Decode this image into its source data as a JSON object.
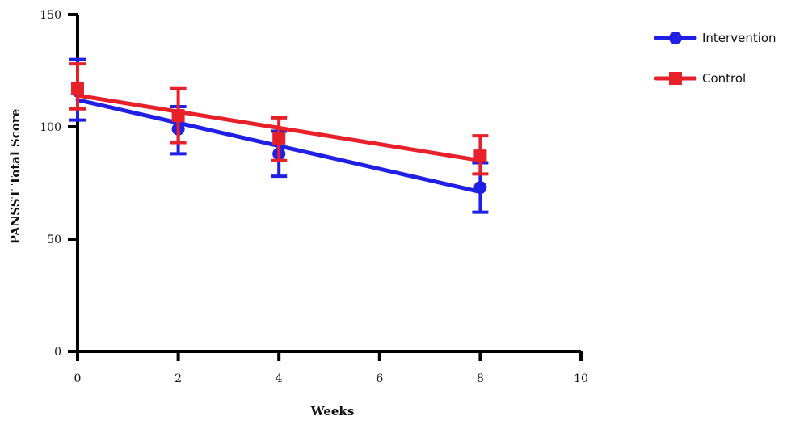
{
  "chart_data": {
    "type": "line",
    "title": "",
    "xlabel": "Weeks",
    "ylabel": "PANSST Total Score",
    "xlim": [
      0,
      10
    ],
    "ylim": [
      0,
      150
    ],
    "x_ticks": [
      "0",
      "2",
      "4",
      "6",
      "8",
      "10"
    ],
    "y_ticks": [
      "0",
      "50",
      "100",
      "150"
    ],
    "grid": false,
    "legend": "top-right",
    "series": [
      {
        "name": "Intervention",
        "color": "#1f1fe6",
        "marker": "circle",
        "points": [
          {
            "x": 0,
            "y": 116,
            "err_low": 103,
            "err_high": 130
          },
          {
            "x": 2,
            "y": 99,
            "err_low": 88,
            "err_high": 109
          },
          {
            "x": 4,
            "y": 88,
            "err_low": 78,
            "err_high": 98
          },
          {
            "x": 8,
            "y": 73,
            "err_low": 62,
            "err_high": 84
          }
        ],
        "trend": {
          "x0": 0,
          "y0": 112,
          "x1": 8,
          "y1": 71
        }
      },
      {
        "name": "Control",
        "color": "#e8202a",
        "marker": "square",
        "points": [
          {
            "x": 0,
            "y": 117,
            "err_low": 108,
            "err_high": 128
          },
          {
            "x": 2,
            "y": 105,
            "err_low": 93,
            "err_high": 117
          },
          {
            "x": 4,
            "y": 95,
            "err_low": 85,
            "err_high": 104
          },
          {
            "x": 8,
            "y": 87,
            "err_low": 79,
            "err_high": 96
          }
        ],
        "trend": {
          "x0": 0,
          "y0": 114,
          "x1": 8,
          "y1": 85
        }
      }
    ]
  }
}
